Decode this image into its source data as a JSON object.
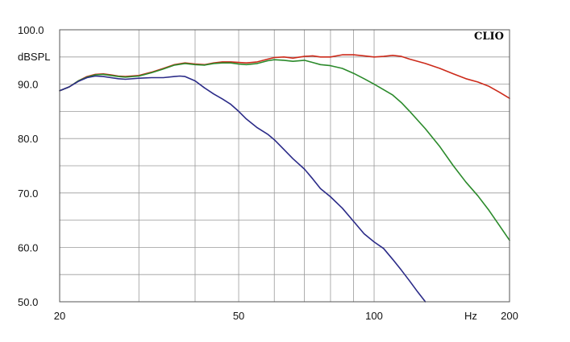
{
  "brand": "CLIO",
  "chart_data": {
    "type": "line",
    "ylabel": "dBSPL",
    "xunit": "Hz",
    "xscale": "log",
    "xlim": [
      20,
      200
    ],
    "ylim": [
      50,
      100
    ],
    "grid": true,
    "yticks": [
      {
        "value": 100,
        "label": "100.0"
      },
      {
        "value": 90,
        "label": "90.0"
      },
      {
        "value": 80,
        "label": "80.0"
      },
      {
        "value": 70,
        "label": "70.0"
      },
      {
        "value": 60,
        "label": "60.0"
      },
      {
        "value": 50,
        "label": "50.0"
      }
    ],
    "xticks": [
      {
        "value": 20,
        "label": "20"
      },
      {
        "value": 50,
        "label": "50"
      },
      {
        "value": 100,
        "label": "100"
      },
      {
        "value": 200,
        "label": "200"
      }
    ],
    "series": [
      {
        "color": "#cc2a1a",
        "x": [
          20,
          21,
          22,
          23,
          24,
          25,
          26,
          27,
          28,
          30,
          32,
          34,
          36,
          38,
          40,
          42,
          44,
          46,
          48,
          50,
          52,
          55,
          58,
          60,
          63,
          66,
          70,
          73,
          76,
          80,
          85,
          90,
          95,
          100,
          105,
          110,
          115,
          120,
          130,
          140,
          150,
          160,
          170,
          180,
          190,
          200
        ],
        "y": [
          88.8,
          89.5,
          90.6,
          91.4,
          91.8,
          91.9,
          91.7,
          91.5,
          91.4,
          91.6,
          92.2,
          92.9,
          93.6,
          93.9,
          93.7,
          93.6,
          93.9,
          94.1,
          94.1,
          94.0,
          93.9,
          94.1,
          94.6,
          94.9,
          95.0,
          94.8,
          95.1,
          95.2,
          95.0,
          95.0,
          95.4,
          95.4,
          95.2,
          95.0,
          95.1,
          95.3,
          95.1,
          94.6,
          93.8,
          92.9,
          91.9,
          91.0,
          90.4,
          89.6,
          88.5,
          87.4
        ]
      },
      {
        "color": "#2b8a2b",
        "x": [
          20,
          21,
          22,
          23,
          24,
          25,
          26,
          27,
          28,
          30,
          32,
          34,
          36,
          38,
          40,
          42,
          44,
          46,
          48,
          50,
          52,
          55,
          58,
          60,
          63,
          66,
          70,
          73,
          76,
          80,
          85,
          90,
          95,
          100,
          105,
          110,
          115,
          120,
          130,
          140,
          150,
          160,
          170,
          180,
          190,
          200
        ],
        "y": [
          88.8,
          89.5,
          90.6,
          91.3,
          91.7,
          91.8,
          91.6,
          91.4,
          91.3,
          91.5,
          92.1,
          92.8,
          93.5,
          93.8,
          93.6,
          93.5,
          93.8,
          93.9,
          93.9,
          93.7,
          93.6,
          93.8,
          94.3,
          94.5,
          94.4,
          94.2,
          94.4,
          94.0,
          93.6,
          93.4,
          92.9,
          92.0,
          91.0,
          90.0,
          89.0,
          88.0,
          86.6,
          85.0,
          81.8,
          78.5,
          75.0,
          72.0,
          69.5,
          66.8,
          64.0,
          61.3
        ]
      },
      {
        "color": "#2b2b88",
        "x": [
          20,
          21,
          22,
          23,
          24,
          25,
          26,
          27,
          28,
          30,
          32,
          34,
          36,
          37,
          38,
          40,
          42,
          44,
          46,
          48,
          50,
          52,
          55,
          58,
          60,
          63,
          66,
          70,
          73,
          76,
          80,
          85,
          90,
          95,
          100,
          105,
          110,
          115,
          120,
          125,
          130
        ],
        "y": [
          88.8,
          89.5,
          90.5,
          91.2,
          91.5,
          91.4,
          91.2,
          91.0,
          90.9,
          91.1,
          91.2,
          91.2,
          91.4,
          91.5,
          91.4,
          90.6,
          89.3,
          88.2,
          87.3,
          86.3,
          85.0,
          83.6,
          82.0,
          80.8,
          79.8,
          78.0,
          76.3,
          74.4,
          72.6,
          70.8,
          69.3,
          67.2,
          64.8,
          62.5,
          61.0,
          59.8,
          57.8,
          55.8,
          53.8,
          51.8,
          50.0
        ]
      }
    ]
  }
}
